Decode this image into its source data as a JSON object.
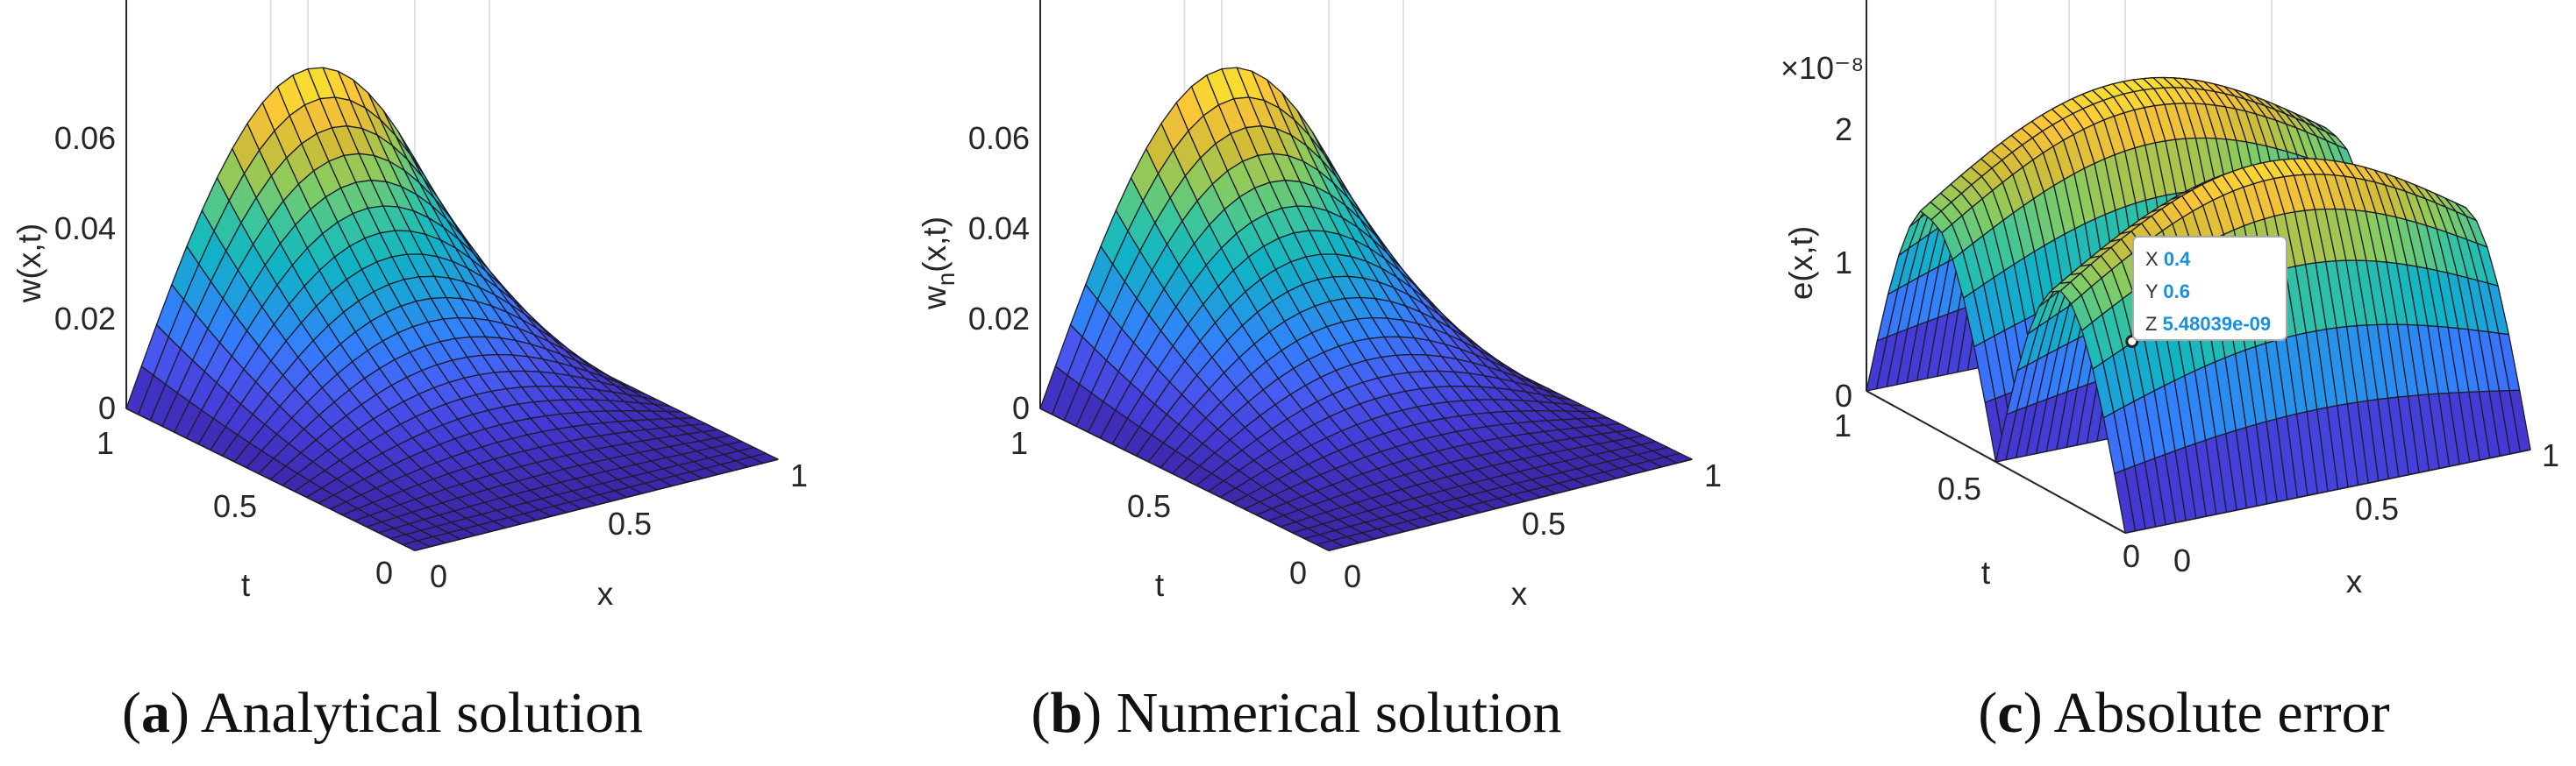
{
  "panels": [
    {
      "letter": "a",
      "caption": "Analytical solution",
      "zlabel": "w(x,t)",
      "zlabel_sub": "",
      "zlabel_rest": "",
      "xlabel": "x",
      "ylabel": "t",
      "xticks": [
        "0",
        "0.5",
        "1"
      ],
      "yticks": [
        "0",
        "0.5",
        "1"
      ],
      "zticks": [
        "0",
        "0.02",
        "0.04",
        "0.06"
      ],
      "exponent": ""
    },
    {
      "letter": "b",
      "caption": "Numerical solution",
      "zlabel": "w",
      "zlabel_sub": "n",
      "zlabel_rest": "(x,t)",
      "xlabel": "x",
      "ylabel": "t",
      "xticks": [
        "0",
        "0.5",
        "1"
      ],
      "yticks": [
        "0",
        "0.5",
        "1"
      ],
      "zticks": [
        "0",
        "0.02",
        "0.04",
        "0.06"
      ],
      "exponent": ""
    },
    {
      "letter": "c",
      "caption": "Absolute error",
      "zlabel": "e(x,t)",
      "zlabel_sub": "",
      "zlabel_rest": "",
      "xlabel": "x",
      "ylabel": "t",
      "xticks": [
        "0",
        "0.5",
        "1"
      ],
      "yticks": [
        "0",
        "0.5",
        "1"
      ],
      "zticks": [
        "0",
        "1",
        "2"
      ],
      "exponent": "×10⁻⁸"
    }
  ],
  "datatip": {
    "x_label": "X",
    "x_value": "0.4",
    "y_label": "Y",
    "y_value": "0.6",
    "z_label": "Z",
    "z_value": "5.48039e-09"
  },
  "chart_data": [
    {
      "type": "surface",
      "title": "Analytical solution",
      "xlabel": "x",
      "ylabel": "t",
      "zlabel": "w(x,t)",
      "xlim": [
        0,
        1
      ],
      "ylim": [
        0,
        1
      ],
      "zlim": [
        0,
        0.065
      ],
      "function": "w(x,t) ≈ 0.0625·sin(πx)·t²  (peak ≈ 0.062 at x = 0.5, t = 1)",
      "colormap": "parula",
      "grid": true,
      "mesh": "24x24"
    },
    {
      "type": "surface",
      "title": "Numerical solution",
      "xlabel": "x",
      "ylabel": "t",
      "zlabel": "w_n(x,t)",
      "xlim": [
        0,
        1
      ],
      "ylim": [
        0,
        1
      ],
      "zlim": [
        0,
        0.065
      ],
      "function": "w_n(x,t) ≈ 0.0625·sin(πx)·t²  (peak ≈ 0.062 at x = 0.5, t = 1)",
      "colormap": "parula",
      "grid": true,
      "mesh": "24x24"
    },
    {
      "type": "surface",
      "title": "Absolute error",
      "xlabel": "x",
      "ylabel": "t",
      "zlabel": "e(x,t)",
      "xlim": [
        0,
        1
      ],
      "ylim": [
        0,
        1
      ],
      "zlim": [
        0,
        2.2e-08
      ],
      "function": "|sin(2πt)|·(1.6 + 0.6·sin(πx))·1e-8, oscillating in t, max ≈ 2.2e-8 at t = 1",
      "colormap": "parula",
      "grid": true,
      "datatip": {
        "x": 0.4,
        "y": 0.6,
        "z": 5.48039e-09
      }
    }
  ]
}
